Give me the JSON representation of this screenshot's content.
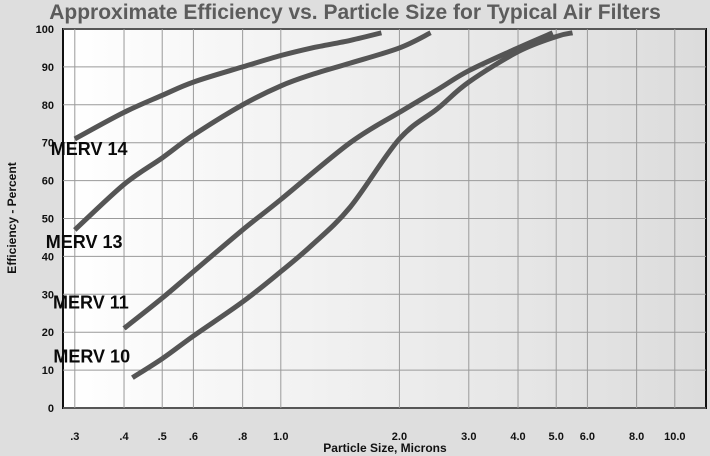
{
  "chart_data": {
    "type": "line",
    "title": "Approximate Efficiency vs. Particle Size  for Typical Air Filters",
    "xlabel": "Particle Size, Microns",
    "ylabel": "Efficiency - Percent",
    "x_scale": "log",
    "xlim": [
      0.28,
      12
    ],
    "ylim": [
      0,
      100
    ],
    "x_ticks": [
      0.3,
      0.4,
      0.5,
      0.6,
      0.8,
      1.0,
      2.0,
      3.0,
      4.0,
      5.0,
      6.0,
      8.0,
      10.0
    ],
    "x_tick_labels": [
      ".3",
      ".4",
      ".5",
      ".6",
      ".8",
      "1.0",
      "2.0",
      "3.0",
      "4.0",
      "5.0",
      "6.0",
      "8.0",
      "10.0"
    ],
    "y_ticks": [
      0,
      10,
      20,
      30,
      40,
      50,
      60,
      70,
      80,
      90,
      100
    ],
    "y_tick_labels": [
      "0",
      "10",
      "20",
      "30",
      "40",
      "50",
      "60",
      "70",
      "80",
      "90",
      "100"
    ],
    "grid": true,
    "series": [
      {
        "name": "MERV 14",
        "color": "#555555",
        "x": [
          0.3,
          0.4,
          0.5,
          0.6,
          0.8,
          1.0,
          1.2,
          1.5,
          1.8
        ],
        "y": [
          71,
          78,
          82.5,
          86,
          90,
          93,
          95,
          97,
          99
        ]
      },
      {
        "name": "MERV 13",
        "color": "#555555",
        "x": [
          0.3,
          0.4,
          0.5,
          0.6,
          0.8,
          1.0,
          1.2,
          1.5,
          2.0,
          2.4
        ],
        "y": [
          47,
          59,
          66,
          72,
          80,
          85,
          88,
          91,
          95,
          99
        ]
      },
      {
        "name": "MERV 11",
        "color": "#555555",
        "x": [
          0.4,
          0.5,
          0.6,
          0.8,
          1.0,
          1.5,
          2.0,
          2.5,
          3.0,
          4.0,
          4.9
        ],
        "y": [
          21,
          29,
          36,
          47,
          55,
          70,
          78,
          84,
          89,
          95,
          99
        ]
      },
      {
        "name": "MERV 10",
        "color": "#555555",
        "x": [
          0.42,
          0.5,
          0.6,
          0.8,
          1.0,
          1.2,
          1.5,
          2.0,
          2.5,
          3.0,
          4.0,
          5.0,
          5.5
        ],
        "y": [
          8,
          13,
          19,
          28,
          36,
          43,
          53,
          71,
          79,
          86,
          94,
          98,
          99
        ]
      }
    ]
  }
}
